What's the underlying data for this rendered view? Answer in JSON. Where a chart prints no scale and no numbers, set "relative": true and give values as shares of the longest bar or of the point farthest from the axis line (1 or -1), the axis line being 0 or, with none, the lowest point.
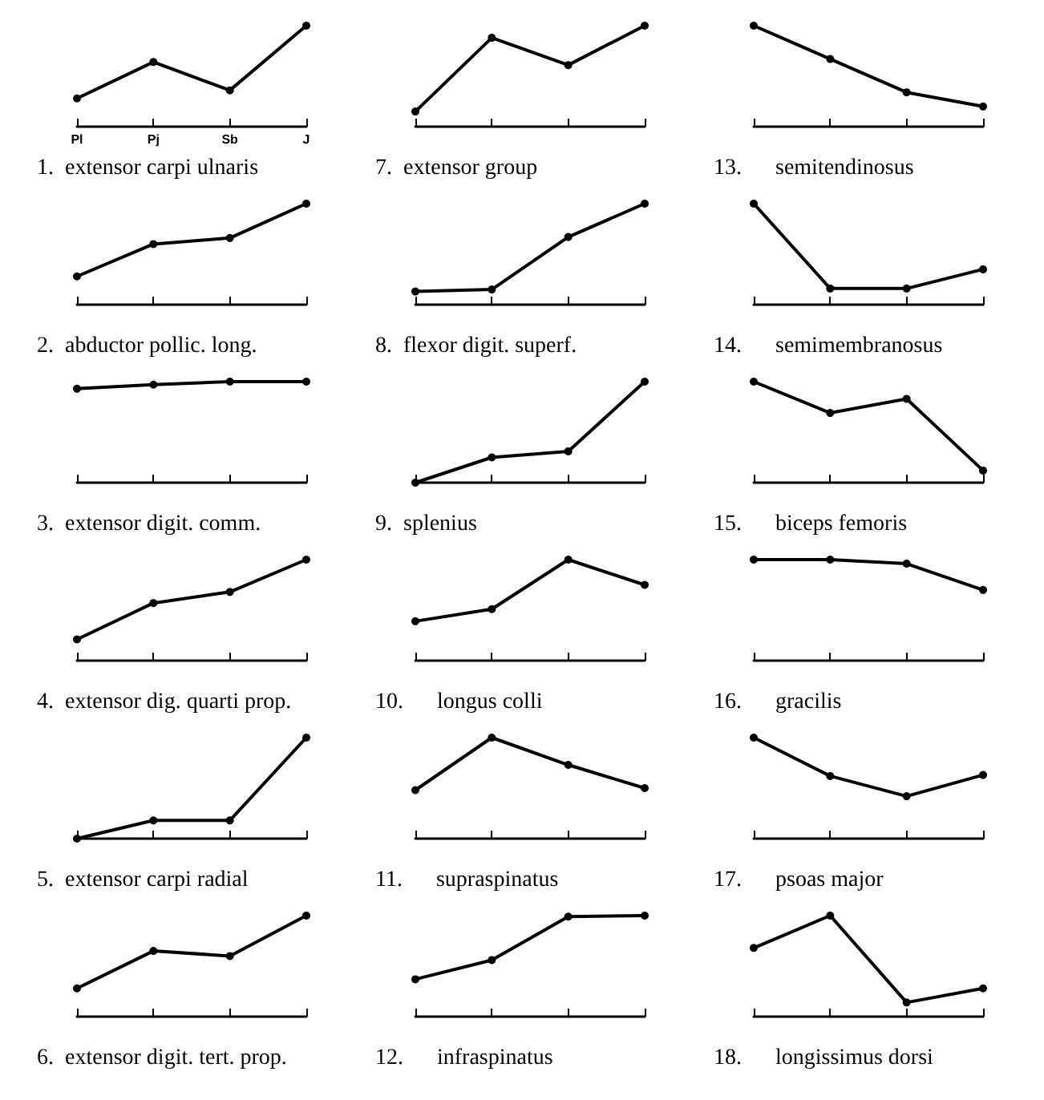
{
  "chart_data": [
    {
      "type": "line",
      "title": "1.  extensor carpi ulnaris",
      "categories": [
        "Pl",
        "Pj",
        "Sb",
        "J"
      ],
      "values": [
        0.28,
        0.64,
        0.36,
        1
      ],
      "color": "#000000",
      "relative": true,
      "tick_labels": "x",
      "marker": "circle"
    },
    {
      "type": "line",
      "title": "2.  abductor pollic. long.",
      "categories": [
        null,
        null,
        null,
        null
      ],
      "values": [
        0.28,
        0.6,
        0.66,
        1
      ],
      "color": "#000000",
      "relative": true,
      "tick_labels": false,
      "marker": "circle"
    },
    {
      "type": "line",
      "title": "3.  extensor digit. comm.",
      "categories": [
        null,
        null,
        null,
        null
      ],
      "values": [
        0.93,
        0.97,
        1,
        1
      ],
      "color": "#000000",
      "relative": true,
      "tick_labels": false,
      "marker": "circle"
    },
    {
      "type": "line",
      "title": "4.  extensor dig. quarti prop.",
      "categories": [
        null,
        null,
        null,
        null
      ],
      "values": [
        0.21,
        0.57,
        0.68,
        1
      ],
      "color": "#000000",
      "relative": true,
      "tick_labels": false,
      "marker": "circle"
    },
    {
      "type": "line",
      "title": "5.  extensor carpi radial",
      "categories": [
        null,
        null,
        null,
        null
      ],
      "values": [
        0,
        0.18,
        0.18,
        1
      ],
      "color": "#000000",
      "relative": true,
      "tick_labels": false,
      "marker": "circle"
    },
    {
      "type": "line",
      "title": "6.  extensor digit. tert. prop.",
      "categories": [
        null,
        null,
        null,
        null
      ],
      "values": [
        0.28,
        0.65,
        0.6,
        1
      ],
      "color": "#000000",
      "relative": true,
      "tick_labels": false,
      "marker": "circle"
    },
    {
      "type": "line",
      "title": "7.  extensor group",
      "categories": [
        null,
        null,
        null,
        null
      ],
      "values": [
        0.15,
        0.88,
        0.61,
        1
      ],
      "color": "#000000",
      "relative": true,
      "tick_labels": false,
      "marker": "circle"
    },
    {
      "type": "line",
      "title": "8.  flexor digit. superf.",
      "categories": [
        null,
        null,
        null,
        null
      ],
      "values": [
        0.13,
        0.15,
        0.67,
        1
      ],
      "color": "#000000",
      "relative": true,
      "tick_labels": false,
      "marker": "circle"
    },
    {
      "type": "line",
      "title": "9.  splenius",
      "categories": [
        null,
        null,
        null,
        null
      ],
      "values": [
        0,
        0.25,
        0.31,
        1
      ],
      "color": "#000000",
      "relative": true,
      "tick_labels": false,
      "marker": "circle"
    },
    {
      "type": "line",
      "title": "10.      longus colli",
      "categories": [
        null,
        null,
        null,
        null
      ],
      "values": [
        0.39,
        0.51,
        1,
        0.75
      ],
      "color": "#000000",
      "relative": true,
      "tick_labels": false,
      "marker": "circle"
    },
    {
      "type": "line",
      "title": "11.      supraspinatus",
      "categories": [
        null,
        null,
        null,
        null
      ],
      "values": [
        0.48,
        1,
        0.73,
        0.5
      ],
      "color": "#000000",
      "relative": true,
      "tick_labels": false,
      "marker": "circle"
    },
    {
      "type": "line",
      "title": "12.      infraspinatus",
      "categories": [
        null,
        null,
        null,
        null
      ],
      "values": [
        0.37,
        0.56,
        0.99,
        1
      ],
      "color": "#000000",
      "relative": true,
      "tick_labels": false,
      "marker": "circle"
    },
    {
      "type": "line",
      "title": "13.      semitendinosus",
      "categories": [
        null,
        null,
        null,
        null
      ],
      "values": [
        1,
        0.67,
        0.34,
        0.2
      ],
      "color": "#000000",
      "relative": true,
      "tick_labels": false,
      "marker": "circle"
    },
    {
      "type": "line",
      "title": "14.      semimembranosus",
      "categories": [
        null,
        null,
        null,
        null
      ],
      "values": [
        1,
        0.16,
        0.16,
        0.35
      ],
      "color": "#000000",
      "relative": true,
      "tick_labels": false,
      "marker": "circle"
    },
    {
      "type": "line",
      "title": "15.      biceps femoris",
      "categories": [
        null,
        null,
        null,
        null
      ],
      "values": [
        1,
        0.69,
        0.83,
        0.12
      ],
      "color": "#000000",
      "relative": true,
      "tick_labels": false,
      "marker": "circle"
    },
    {
      "type": "line",
      "title": "16.      gracilis",
      "categories": [
        null,
        null,
        null,
        null
      ],
      "values": [
        1,
        1,
        0.96,
        0.7
      ],
      "color": "#000000",
      "relative": true,
      "tick_labels": false,
      "marker": "circle"
    },
    {
      "type": "line",
      "title": "17.      psoas major",
      "categories": [
        null,
        null,
        null,
        null
      ],
      "values": [
        1,
        0.62,
        0.42,
        0.63
      ],
      "color": "#000000",
      "relative": true,
      "tick_labels": false,
      "marker": "circle"
    },
    {
      "type": "line",
      "title": "18.      longissimus dorsi",
      "categories": [
        null,
        null,
        null,
        null
      ],
      "values": [
        0.68,
        1,
        0.14,
        0.28
      ],
      "color": "#000000",
      "relative": true,
      "tick_labels": false,
      "marker": "circle"
    }
  ]
}
